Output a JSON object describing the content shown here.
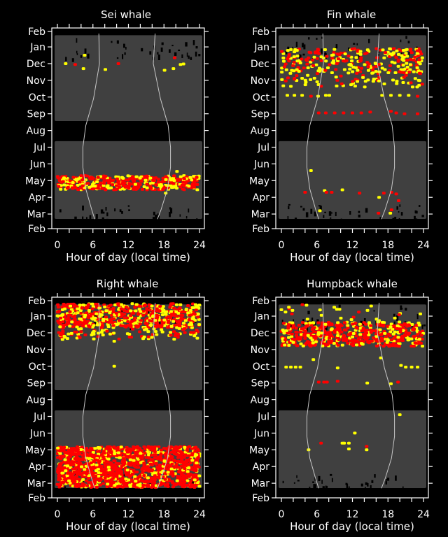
{
  "chart_data": {
    "type": "scatter",
    "xlabel": "Hour of day (local time)",
    "xlim": [
      0,
      24
    ],
    "xticks": [
      0,
      6,
      12,
      18,
      24
    ],
    "xtick_labels": [
      "0",
      "6",
      "12",
      "18",
      "24"
    ],
    "x_minor_step": 2,
    "ylim_month_index": [
      0,
      12
    ],
    "ytick_labels": [
      "Feb",
      "Mar",
      "Apr",
      "May",
      "Jun",
      "Jul",
      "Aug",
      "Sep",
      "Oct",
      "Nov",
      "Dec",
      "Jan",
      "Feb"
    ],
    "ytick_values": [
      0,
      1,
      2,
      3,
      4,
      5,
      6,
      7,
      8,
      9,
      10,
      11,
      12
    ],
    "colors": {
      "background": "#000000",
      "effort": "#404040",
      "frame": "#ffffff",
      "sun_curve": "#c8c8c8",
      "series_red": "#ff0000",
      "series_yellow": "#ffff00"
    },
    "effort_blocks": [
      {
        "month_from": 6.57,
        "month_to": 11.7,
        "hour_from": 0,
        "hour_to": 24
      },
      {
        "month_from": 0.71,
        "month_to": 5.36,
        "hour_from": 0,
        "hour_to": 24
      }
    ],
    "sunrise_curve": [
      [
        11.8,
        7.0
      ],
      [
        10.0,
        7.1
      ],
      [
        7.9,
        6.1
      ],
      [
        6.3,
        4.8
      ],
      [
        5.0,
        4.3
      ],
      [
        3.8,
        4.3
      ],
      [
        2.5,
        4.8
      ],
      [
        1.25,
        5.8
      ],
      [
        0.7,
        6.3
      ]
    ],
    "sunset_curve": [
      [
        11.8,
        16.5
      ],
      [
        10.0,
        16.2
      ],
      [
        7.9,
        17.4
      ],
      [
        6.3,
        18.7
      ],
      [
        5.0,
        19.1
      ],
      [
        3.8,
        19.1
      ],
      [
        2.5,
        18.6
      ],
      [
        1.25,
        17.5
      ],
      [
        0.7,
        16.9
      ]
    ],
    "panels": [
      {
        "title": "Sei whale",
        "points": [
          {
            "h": 1.4,
            "m": 10.0,
            "c": "yellow"
          },
          {
            "h": 3.0,
            "m": 9.95,
            "c": "red"
          },
          {
            "h": 4.4,
            "m": 9.7,
            "c": "yellow"
          },
          {
            "h": 4.6,
            "m": 10.5,
            "c": "yellow"
          },
          {
            "h": 8.1,
            "m": 9.65,
            "c": "yellow"
          },
          {
            "h": 10.3,
            "m": 10.0,
            "c": "red"
          },
          {
            "h": 18.1,
            "m": 9.6,
            "c": "yellow"
          },
          {
            "h": 19.6,
            "m": 9.7,
            "c": "yellow"
          },
          {
            "h": 19.8,
            "m": 10.35,
            "c": "red"
          },
          {
            "h": 20.8,
            "m": 9.95,
            "c": "yellow"
          },
          {
            "h": 21.3,
            "m": 9.98,
            "c": "yellow"
          },
          {
            "h": 20.2,
            "m": 3.55,
            "c": "yellow"
          },
          {
            "h": 18.3,
            "m": 2.25,
            "c": "yellow"
          }
        ],
        "bands": [
          {
            "h0": 0,
            "h1": 24,
            "m0": 2.45,
            "m1": 3.3,
            "n": 420,
            "red_fraction": 0.65
          }
        ]
      },
      {
        "title": "Fin whale",
        "points": [
          {
            "h": 19.0,
            "m": 10.9,
            "c": "red"
          },
          {
            "h": 1.0,
            "m": 8.1,
            "c": "yellow"
          },
          {
            "h": 2.2,
            "m": 8.1,
            "c": "yellow"
          },
          {
            "h": 3.5,
            "m": 8.1,
            "c": "yellow"
          },
          {
            "h": 5.0,
            "m": 8.05,
            "c": "red"
          },
          {
            "h": 6.2,
            "m": 8.05,
            "c": "yellow"
          },
          {
            "h": 7.5,
            "m": 8.1,
            "c": "yellow"
          },
          {
            "h": 8.1,
            "m": 8.1,
            "c": "yellow"
          },
          {
            "h": 17.0,
            "m": 8.1,
            "c": "yellow"
          },
          {
            "h": 18.5,
            "m": 8.1,
            "c": "yellow"
          },
          {
            "h": 20.0,
            "m": 8.1,
            "c": "yellow"
          },
          {
            "h": 21.5,
            "m": 8.1,
            "c": "yellow"
          },
          {
            "h": 23.0,
            "m": 8.05,
            "c": "red"
          },
          {
            "h": 6.3,
            "m": 7.05,
            "c": "red"
          },
          {
            "h": 7.5,
            "m": 7.05,
            "c": "red"
          },
          {
            "h": 9.0,
            "m": 7.05,
            "c": "red"
          },
          {
            "h": 10.5,
            "m": 7.05,
            "c": "red"
          },
          {
            "h": 12.0,
            "m": 7.05,
            "c": "red"
          },
          {
            "h": 13.5,
            "m": 7.05,
            "c": "red"
          },
          {
            "h": 15.0,
            "m": 7.1,
            "c": "red"
          },
          {
            "h": 18.5,
            "m": 7.15,
            "c": "red"
          },
          {
            "h": 19.4,
            "m": 7.05,
            "c": "red"
          },
          {
            "h": 20.8,
            "m": 7.0,
            "c": "red"
          },
          {
            "h": 23.0,
            "m": 7.0,
            "c": "red"
          },
          {
            "h": 5.0,
            "m": 3.6,
            "c": "yellow"
          },
          {
            "h": 4.0,
            "m": 2.3,
            "c": "red"
          },
          {
            "h": 7.3,
            "m": 2.4,
            "c": "yellow"
          },
          {
            "h": 7.6,
            "m": 2.3,
            "c": "red"
          },
          {
            "h": 8.5,
            "m": 2.3,
            "c": "red"
          },
          {
            "h": 10.3,
            "m": 2.45,
            "c": "yellow"
          },
          {
            "h": 13.2,
            "m": 2.25,
            "c": "red"
          },
          {
            "h": 16.5,
            "m": 2.0,
            "c": "yellow"
          },
          {
            "h": 17.3,
            "m": 2.25,
            "c": "red"
          },
          {
            "h": 18.6,
            "m": 2.3,
            "c": "red"
          },
          {
            "h": 19.4,
            "m": 2.2,
            "c": "red"
          },
          {
            "h": 19.8,
            "m": 1.8,
            "c": "red"
          },
          {
            "h": 6.5,
            "m": 1.2,
            "c": "yellow"
          },
          {
            "h": 16.4,
            "m": 1.05,
            "c": "red"
          },
          {
            "h": 18.6,
            "m": 1.25,
            "c": "red"
          },
          {
            "h": 18.4,
            "m": 1.05,
            "c": "yellow"
          }
        ],
        "bands": [
          {
            "h0": 0,
            "h1": 24,
            "m0": 9.4,
            "m1": 10.9,
            "n": 260,
            "red_fraction": 0.5
          },
          {
            "h0": 0,
            "h1": 24,
            "m0": 8.6,
            "m1": 9.3,
            "n": 60,
            "red_fraction": 0.4
          }
        ]
      },
      {
        "title": "Right whale",
        "points": [
          {
            "h": 9.6,
            "m": 8.0,
            "c": "yellow"
          },
          {
            "h": 9.6,
            "m": 9.5,
            "c": "yellow"
          }
        ],
        "bands": [
          {
            "h0": 0,
            "h1": 24,
            "m0": 10.3,
            "m1": 11.75,
            "n": 600,
            "red_fraction": 0.62
          },
          {
            "h0": 0,
            "h1": 24,
            "m0": 9.6,
            "m1": 10.3,
            "n": 90,
            "red_fraction": 0.45
          },
          {
            "h0": 0,
            "h1": 24,
            "m0": 0.75,
            "m1": 3.2,
            "n": 1400,
            "red_fraction": 0.8
          }
        ]
      },
      {
        "title": "Humpback whale",
        "points": [
          {
            "h": 0.8,
            "m": 7.95,
            "c": "yellow"
          },
          {
            "h": 1.6,
            "m": 7.95,
            "c": "yellow"
          },
          {
            "h": 2.4,
            "m": 7.95,
            "c": "yellow"
          },
          {
            "h": 3.2,
            "m": 7.95,
            "c": "yellow"
          },
          {
            "h": 21.0,
            "m": 7.95,
            "c": "yellow"
          },
          {
            "h": 22.0,
            "m": 7.95,
            "c": "yellow"
          },
          {
            "h": 23.0,
            "m": 7.95,
            "c": "yellow"
          },
          {
            "h": 20.2,
            "m": 8.05,
            "c": "yellow"
          },
          {
            "h": 9.5,
            "m": 7.9,
            "c": "yellow"
          },
          {
            "h": 16.8,
            "m": 8.5,
            "c": "yellow"
          },
          {
            "h": 5.4,
            "m": 8.4,
            "c": "yellow"
          },
          {
            "h": 6.3,
            "m": 7.05,
            "c": "red"
          },
          {
            "h": 7.2,
            "m": 7.05,
            "c": "red"
          },
          {
            "h": 7.7,
            "m": 7.05,
            "c": "red"
          },
          {
            "h": 9.5,
            "m": 7.1,
            "c": "red"
          },
          {
            "h": 14.5,
            "m": 7.0,
            "c": "yellow"
          },
          {
            "h": 18.5,
            "m": 6.95,
            "c": "yellow"
          },
          {
            "h": 19.7,
            "m": 7.05,
            "c": "red"
          },
          {
            "h": 20.0,
            "m": 5.1,
            "c": "yellow"
          },
          {
            "h": 12.4,
            "m": 4.0,
            "c": "yellow"
          },
          {
            "h": 6.7,
            "m": 3.4,
            "c": "red"
          },
          {
            "h": 10.3,
            "m": 3.4,
            "c": "yellow"
          },
          {
            "h": 10.6,
            "m": 3.4,
            "c": "yellow"
          },
          {
            "h": 11.4,
            "m": 3.4,
            "c": "yellow"
          },
          {
            "h": 11.4,
            "m": 3.05,
            "c": "yellow"
          },
          {
            "h": 14.4,
            "m": 3.2,
            "c": "red"
          },
          {
            "h": 14.4,
            "m": 3.0,
            "c": "yellow"
          },
          {
            "h": 4.6,
            "m": 3.0,
            "c": "yellow"
          }
        ],
        "bands": [
          {
            "h0": 0,
            "h1": 24,
            "m0": 9.2,
            "m1": 10.65,
            "n": 520,
            "red_fraction": 0.68
          },
          {
            "h0": 0,
            "h1": 24,
            "m0": 10.6,
            "m1": 11.7,
            "n": 30,
            "red_fraction": 0.15
          }
        ]
      }
    ]
  }
}
